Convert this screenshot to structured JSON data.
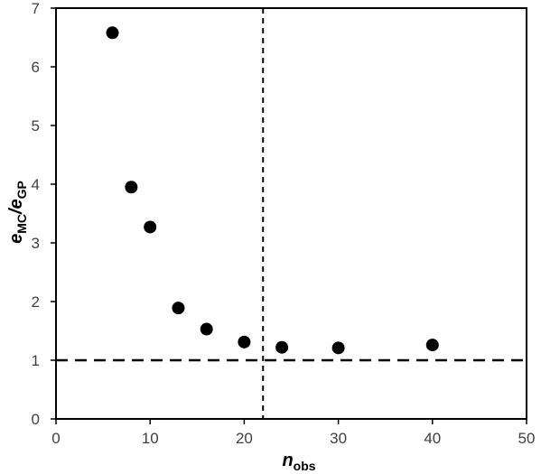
{
  "chart_data": {
    "type": "scatter",
    "title": "",
    "xlabel": {
      "main": "n",
      "sub": "obs"
    },
    "ylabel": {
      "main1": "e",
      "sub1": "MC",
      "sep": "/",
      "main2": "e",
      "sub2": "GP"
    },
    "xlim": [
      0,
      50
    ],
    "ylim": [
      0,
      7
    ],
    "xticks": [
      0,
      10,
      20,
      30,
      40,
      50
    ],
    "yticks": [
      0,
      1,
      2,
      3,
      4,
      5,
      6,
      7
    ],
    "grid": false,
    "legend": "none",
    "reference_lines": [
      {
        "orientation": "vertical",
        "x": 22,
        "style": "dashed"
      },
      {
        "orientation": "horizontal",
        "y": 1,
        "style": "dashed"
      }
    ],
    "x": [
      6,
      8,
      10,
      13,
      16,
      20,
      24,
      30,
      40
    ],
    "y": [
      6.58,
      3.95,
      3.27,
      1.89,
      1.53,
      1.31,
      1.22,
      1.21,
      1.26
    ],
    "marker_color": "#000000"
  }
}
